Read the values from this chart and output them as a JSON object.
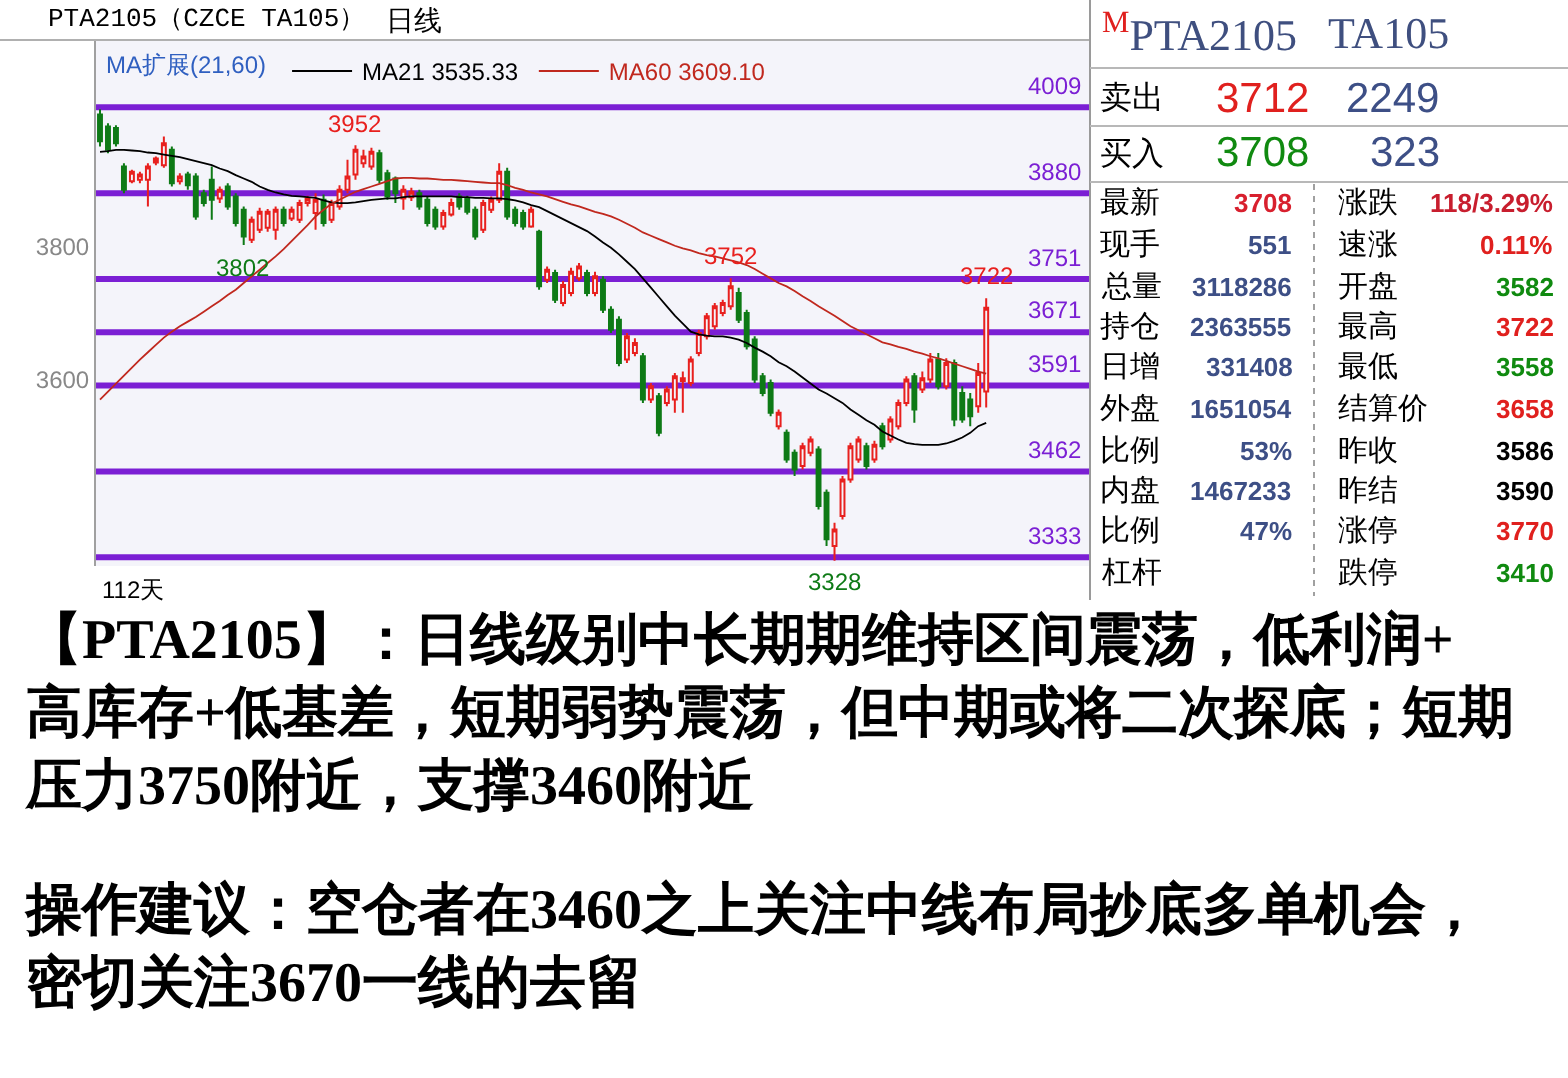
{
  "chart_data": [
    {
      "type": "candlestick",
      "title": "PTA2105（CZCE TA105）",
      "subtitle": "日线",
      "xlabel": "112天",
      "legend_title": "MA扩展(21,60)",
      "legend": "top left",
      "categories": [
        null,
        null,
        null,
        null,
        null,
        null,
        null,
        null,
        null,
        null,
        null,
        null,
        null,
        null,
        null,
        null,
        null,
        null,
        null,
        null,
        null,
        null,
        null,
        null,
        null,
        null,
        null,
        null,
        null,
        null,
        null,
        null,
        null,
        null,
        null,
        null,
        null,
        null,
        null,
        null,
        null,
        null,
        null,
        null,
        null,
        null,
        null,
        null,
        null,
        null,
        null,
        null,
        null,
        null,
        null,
        null,
        null,
        null,
        null,
        null,
        null,
        null,
        null,
        null,
        null,
        null,
        null,
        null,
        null,
        null,
        null,
        null,
        null,
        null,
        null,
        null,
        null,
        null,
        null,
        null,
        null,
        null,
        null,
        null,
        null,
        null,
        null,
        null,
        null,
        null,
        null,
        null,
        null,
        null,
        null,
        null,
        null,
        null,
        null,
        null,
        null,
        null,
        null,
        null,
        null,
        null,
        null,
        null,
        null,
        null,
        null,
        null
      ],
      "ohlc": [
        [
          3998,
          4006,
          3950,
          3958
        ],
        [
          3980,
          3985,
          3940,
          3945
        ],
        [
          3978,
          3982,
          3950,
          3955
        ],
        [
          3920,
          3925,
          3880,
          3885
        ],
        [
          3898,
          3915,
          3895,
          3912
        ],
        [
          3900,
          3912,
          3895,
          3908
        ],
        [
          3900,
          3925,
          3860,
          3920
        ],
        [
          3926,
          3935,
          3922,
          3932
        ],
        [
          3922,
          3965,
          3918,
          3955
        ],
        [
          3945,
          3950,
          3890,
          3895
        ],
        [
          3898,
          3910,
          3893,
          3905
        ],
        [
          3908,
          3912,
          3885,
          3892
        ],
        [
          3905,
          3910,
          3840,
          3845
        ],
        [
          3880,
          3885,
          3860,
          3865
        ],
        [
          3900,
          3920,
          3840,
          3870
        ],
        [
          3872,
          3890,
          3865,
          3885
        ],
        [
          3890,
          3895,
          3855,
          3860
        ],
        [
          3875,
          3880,
          3830,
          3835
        ],
        [
          3855,
          3860,
          3802,
          3815
        ],
        [
          3810,
          3845,
          3805,
          3840
        ],
        [
          3825,
          3858,
          3820,
          3852
        ],
        [
          3828,
          3856,
          3822,
          3852
        ],
        [
          3825,
          3860,
          3810,
          3855
        ],
        [
          3855,
          3860,
          3830,
          3835
        ],
        [
          3842,
          3860,
          3838,
          3855
        ],
        [
          3840,
          3870,
          3835,
          3865
        ],
        [
          3865,
          3876,
          3860,
          3872
        ],
        [
          3850,
          3880,
          3825,
          3870
        ],
        [
          3870,
          3878,
          3830,
          3835
        ],
        [
          3840,
          3870,
          3835,
          3865
        ],
        [
          3860,
          3892,
          3855,
          3885
        ],
        [
          3885,
          3930,
          3880,
          3905
        ],
        [
          3908,
          3952,
          3900,
          3945
        ],
        [
          3925,
          3945,
          3918,
          3935
        ],
        [
          3920,
          3948,
          3915,
          3942
        ],
        [
          3940,
          3945,
          3895,
          3900
        ],
        [
          3910,
          3915,
          3870,
          3875
        ],
        [
          3902,
          3905,
          3865,
          3880
        ],
        [
          3872,
          3892,
          3855,
          3885
        ],
        [
          3874,
          3888,
          3868,
          3882
        ],
        [
          3880,
          3885,
          3855,
          3860
        ],
        [
          3870,
          3875,
          3830,
          3835
        ],
        [
          3855,
          3860,
          3825,
          3830
        ],
        [
          3830,
          3855,
          3825,
          3850
        ],
        [
          3848,
          3872,
          3845,
          3865
        ],
        [
          3875,
          3880,
          3855,
          3860
        ],
        [
          3872,
          3876,
          3848,
          3852
        ],
        [
          3855,
          3860,
          3810,
          3815
        ],
        [
          3825,
          3870,
          3820,
          3865
        ],
        [
          3855,
          3875,
          3850,
          3870
        ],
        [
          3870,
          3925,
          3865,
          3912
        ],
        [
          3912,
          3918,
          3840,
          3845
        ],
        [
          3855,
          3860,
          3830,
          3835
        ],
        [
          3850,
          3855,
          3825,
          3830
        ],
        [
          3830,
          3860,
          3828,
          3855
        ],
        [
          3822,
          3825,
          3735,
          3740
        ],
        [
          3750,
          3770,
          3745,
          3765
        ],
        [
          3760,
          3765,
          3715,
          3720
        ],
        [
          3715,
          3748,
          3710,
          3742
        ],
        [
          3730,
          3768,
          3725,
          3762
        ],
        [
          3752,
          3775,
          3748,
          3770
        ],
        [
          3760,
          3765,
          3725,
          3730
        ],
        [
          3730,
          3762,
          3725,
          3755
        ],
        [
          3750,
          3755,
          3700,
          3705
        ],
        [
          3705,
          3710,
          3670,
          3675
        ],
        [
          3690,
          3695,
          3620,
          3625
        ],
        [
          3630,
          3670,
          3625,
          3665
        ],
        [
          3640,
          3662,
          3635,
          3655
        ],
        [
          3635,
          3640,
          3565,
          3570
        ],
        [
          3570,
          3595,
          3565,
          3590
        ],
        [
          3575,
          3580,
          3515,
          3520
        ],
        [
          3565,
          3590,
          3560,
          3585
        ],
        [
          3570,
          3610,
          3550,
          3605
        ],
        [
          3598,
          3612,
          3550,
          3602
        ],
        [
          3595,
          3635,
          3590,
          3630
        ],
        [
          3640,
          3675,
          3635,
          3670
        ],
        [
          3665,
          3700,
          3660,
          3695
        ],
        [
          3680,
          3715,
          3675,
          3710
        ],
        [
          3700,
          3720,
          3695,
          3715
        ],
        [
          3710,
          3752,
          3705,
          3740
        ],
        [
          3730,
          3738,
          3685,
          3690
        ],
        [
          3700,
          3705,
          3645,
          3650
        ],
        [
          3660,
          3665,
          3595,
          3600
        ],
        [
          3605,
          3610,
          3575,
          3580
        ],
        [
          3595,
          3600,
          3545,
          3550
        ],
        [
          3530,
          3555,
          3525,
          3550
        ],
        [
          3520,
          3525,
          3475,
          3480
        ],
        [
          3490,
          3495,
          3455,
          3465
        ],
        [
          3470,
          3505,
          3465,
          3500
        ],
        [
          3490,
          3515,
          3485,
          3510
        ],
        [
          3495,
          3500,
          3405,
          3410
        ],
        [
          3430,
          3435,
          3350,
          3360
        ],
        [
          3350,
          3385,
          3328,
          3375
        ],
        [
          3395,
          3455,
          3390,
          3450
        ],
        [
          3450,
          3505,
          3445,
          3500
        ],
        [
          3480,
          3515,
          3475,
          3510
        ],
        [
          3500,
          3505,
          3465,
          3470
        ],
        [
          3480,
          3508,
          3475,
          3502
        ],
        [
          3530,
          3535,
          3495,
          3500
        ],
        [
          3510,
          3545,
          3505,
          3540
        ],
        [
          3530,
          3570,
          3525,
          3565
        ],
        [
          3565,
          3605,
          3560,
          3600
        ],
        [
          3605,
          3610,
          3535,
          3555
        ],
        [
          3585,
          3612,
          3580,
          3602
        ],
        [
          3600,
          3640,
          3595,
          3630
        ],
        [
          3630,
          3640,
          3585,
          3590
        ],
        [
          3590,
          3632,
          3585,
          3625
        ],
        [
          3625,
          3630,
          3530,
          3540
        ],
        [
          3580,
          3590,
          3535,
          3540
        ],
        [
          3570,
          3580,
          3530,
          3545
        ],
        [
          3560,
          3625,
          3550,
          3610
        ],
        [
          3582,
          3722,
          3558,
          3708
        ]
      ],
      "colors": [
        "#0e7a16",
        "#0e7a16",
        "#0e7a16",
        "#0e7a16",
        "#e8201e",
        "#e8201e",
        "#e8201e",
        "#e8201e",
        "#e8201e",
        "#0e7a16",
        "#e8201e",
        "#0e7a16",
        "#0e7a16",
        "#0e7a16",
        "#0e7a16",
        "#e8201e",
        "#0e7a16",
        "#0e7a16",
        "#0e7a16",
        "#e8201e",
        "#e8201e",
        "#e8201e",
        "#e8201e",
        "#0e7a16",
        "#e8201e",
        "#e8201e",
        "#e8201e",
        "#e8201e",
        "#0e7a16",
        "#e8201e",
        "#e8201e",
        "#e8201e",
        "#e8201e",
        "#e8201e",
        "#e8201e",
        "#0e7a16",
        "#0e7a16",
        "#0e7a16",
        "#e8201e",
        "#e8201e",
        "#0e7a16",
        "#0e7a16",
        "#0e7a16",
        "#e8201e",
        "#e8201e",
        "#0e7a16",
        "#0e7a16",
        "#0e7a16",
        "#e8201e",
        "#e8201e",
        "#e8201e",
        "#0e7a16",
        "#0e7a16",
        "#0e7a16",
        "#e8201e",
        "#0e7a16",
        "#e8201e",
        "#0e7a16",
        "#e8201e",
        "#e8201e",
        "#e8201e",
        "#0e7a16",
        "#e8201e",
        "#0e7a16",
        "#0e7a16",
        "#0e7a16",
        "#e8201e",
        "#e8201e",
        "#0e7a16",
        "#e8201e",
        "#0e7a16",
        "#e8201e",
        "#e8201e",
        "#e8201e",
        "#e8201e",
        "#e8201e",
        "#e8201e",
        "#e8201e",
        "#e8201e",
        "#e8201e",
        "#0e7a16",
        "#0e7a16",
        "#0e7a16",
        "#0e7a16",
        "#0e7a16",
        "#e8201e",
        "#0e7a16",
        "#0e7a16",
        "#e8201e",
        "#e8201e",
        "#0e7a16",
        "#0e7a16",
        "#e8201e",
        "#e8201e",
        "#e8201e",
        "#e8201e",
        "#0e7a16",
        "#e8201e",
        "#0e7a16",
        "#e8201e",
        "#e8201e",
        "#e8201e",
        "#0e7a16",
        "#e8201e",
        "#e8201e",
        "#0e7a16",
        "#e8201e",
        "#0e7a16",
        "#0e7a16",
        "#0e7a16",
        "#e8201e",
        "#e8201e"
      ],
      "series": [
        {
          "type": "line",
          "name": "MA21 3535.33",
          "color": "#000000",
          "values": [
            3942,
            3943,
            3945,
            3945,
            3944,
            3943,
            3941,
            3940,
            3938,
            3936,
            3934,
            3931,
            3928,
            3925,
            3922,
            3917,
            3913,
            3907,
            3902,
            3897,
            3890,
            3885,
            3881,
            3878,
            3876,
            3875,
            3874,
            3873,
            3869,
            3866,
            3865,
            3865,
            3866,
            3868,
            3870,
            3871,
            3872,
            3872,
            3874,
            3875,
            3875,
            3875,
            3875,
            3875,
            3875,
            3874,
            3874,
            3873,
            3873,
            3872,
            3872,
            3871,
            3869,
            3866,
            3862,
            3859,
            3853,
            3847,
            3841,
            3835,
            3829,
            3823,
            3815,
            3806,
            3798,
            3788,
            3777,
            3766,
            3752,
            3738,
            3724,
            3710,
            3696,
            3684,
            3672,
            3668,
            3666,
            3665,
            3665,
            3663,
            3660,
            3655,
            3648,
            3642,
            3635,
            3626,
            3620,
            3612,
            3603,
            3594,
            3585,
            3579,
            3572,
            3565,
            3555,
            3547,
            3539,
            3532,
            3522,
            3516,
            3510,
            3505,
            3503,
            3502,
            3502,
            3502,
            3504,
            3508,
            3513,
            3520,
            3530,
            3535
          ]
        },
        {
          "type": "line",
          "name": "MA60 3609.10",
          "color": "#c0281e",
          "values": [
            3570,
            3582,
            3594,
            3606,
            3618,
            3630,
            3641,
            3652,
            3663,
            3672,
            3680,
            3687,
            3694,
            3702,
            3710,
            3718,
            3727,
            3735,
            3745,
            3755,
            3765,
            3775,
            3785,
            3796,
            3808,
            3820,
            3832,
            3845,
            3855,
            3864,
            3870,
            3876,
            3882,
            3886,
            3890,
            3894,
            3898,
            3902,
            3903,
            3903,
            3902,
            3902,
            3901,
            3900,
            3900,
            3899,
            3898,
            3897,
            3896,
            3895,
            3895,
            3892,
            3888,
            3885,
            3881,
            3878,
            3875,
            3871,
            3867,
            3863,
            3860,
            3856,
            3852,
            3849,
            3845,
            3840,
            3834,
            3828,
            3821,
            3816,
            3811,
            3806,
            3801,
            3797,
            3794,
            3790,
            3787,
            3785,
            3782,
            3779,
            3776,
            3772,
            3766,
            3759,
            3752,
            3745,
            3740,
            3733,
            3725,
            3718,
            3710,
            3703,
            3696,
            3688,
            3680,
            3674,
            3668,
            3662,
            3656,
            3653,
            3649,
            3646,
            3642,
            3639,
            3635,
            3632,
            3628,
            3624,
            3620,
            3616,
            3612,
            3609
          ]
        }
      ],
      "ylim": [
        3320,
        4110
      ],
      "yticks": [
        3800,
        3600
      ],
      "ref_lines": [
        {
          "axis": "y",
          "value": 4009,
          "label": "4009",
          "color": "#7b1fd4"
        },
        {
          "axis": "y",
          "value": 3880,
          "label": "3880",
          "color": "#7b1fd4"
        },
        {
          "axis": "y",
          "value": 3751,
          "label": "3751",
          "color": "#7b1fd4"
        },
        {
          "axis": "y",
          "value": 3671,
          "label": "3671",
          "color": "#7b1fd4"
        },
        {
          "axis": "y",
          "value": 3591,
          "label": "3591",
          "color": "#7b1fd4"
        },
        {
          "axis": "y",
          "value": 3462,
          "label": "3462",
          "color": "#7b1fd4"
        },
        {
          "axis": "y",
          "value": 3333,
          "label": "3333",
          "color": "#7b1fd4"
        }
      ],
      "annotations": [
        {
          "text": "3952",
          "y": 3952
        },
        {
          "text": "3802",
          "y": 3802
        },
        {
          "text": "3752",
          "y": 3752
        },
        {
          "text": "3722",
          "y": 3722
        },
        {
          "text": "3328",
          "y": 3328
        },
        "【PTA2105】：日线级别中长期期维持区间震荡，低利润+高库存+低基差，短期弱势震荡，但中期或将二次探底；短期压力3750附近，支撑3460附近",
        "操作建议：空仓者在3460之上关注中线布局抄底多单机会，密切关注3670一线的去留"
      ]
    },
    {
      "type": "other",
      "title": "$^{M}$PTA2105",
      "subtitle": "TA105",
      "annotations": [
        "卖出",
        "3712",
        "2249",
        "买入",
        "3708",
        "323",
        "最新",
        "3708",
        "涨跌",
        "118/3.29%",
        "现手",
        "551",
        "速涨",
        "0.11%",
        "总量",
        "3118286",
        "开盘",
        "3582",
        "持仓",
        "2363555",
        "最高",
        "3722",
        "日增",
        "331408",
        "最低",
        "3558",
        "外盘",
        "1651054",
        "结算价",
        "3658",
        "比例",
        "53%",
        "昨收",
        "3586",
        "内盘",
        "1467233",
        "昨结",
        "3590",
        "比例",
        "47%",
        "涨停",
        "3770",
        "杠杆",
        null,
        "跌停",
        "3410"
      ],
      "colors": [
        "#000000",
        "#e0201e",
        "#3d4f86",
        "#000000",
        "#108a10",
        "#3d4f86",
        "#000000",
        "#d8202e",
        "#000000",
        "#c81e2e",
        "#000000",
        "#3d4f86",
        "#000000",
        "#e0201e",
        "#000000",
        "#3d4f86",
        "#000000",
        "#108a10",
        "#000000",
        "#3d4f86",
        "#000000",
        "#e0201e",
        "#000000",
        "#3d4f86",
        "#000000",
        "#108a10",
        "#000000",
        "#3d4f86",
        "#000000",
        "#e0201e",
        "#000000",
        "#3d4f86",
        "#000000",
        "#000000",
        "#000000",
        "#3d4f86",
        "#000000",
        "#000000",
        "#000000",
        "#3d4f86",
        "#000000",
        "#e0201e",
        "#000000",
        null,
        "#000000",
        "#108a10"
      ]
    }
  ]
}
